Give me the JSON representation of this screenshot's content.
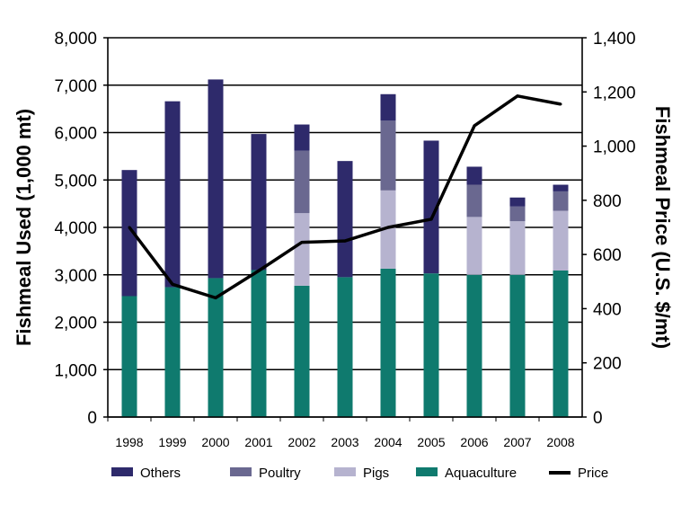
{
  "chart_data": {
    "type": "bar",
    "stacked": true,
    "categories": [
      "1998",
      "1999",
      "2000",
      "2001",
      "2002",
      "2003",
      "2004",
      "2005",
      "2006",
      "2007",
      "2008"
    ],
    "series": [
      {
        "name": "Aquaculture",
        "color": "#0f7a6e",
        "values": [
          2550,
          2740,
          2930,
          3100,
          2770,
          2950,
          3130,
          3030,
          3000,
          3000,
          3090
        ]
      },
      {
        "name": "Pigs",
        "color": "#b6b3cf",
        "values": [
          0,
          0,
          0,
          0,
          1530,
          0,
          1650,
          0,
          1220,
          1130,
          1260
        ]
      },
      {
        "name": "Poultry",
        "color": "#6a6890",
        "values": [
          0,
          0,
          0,
          0,
          1320,
          0,
          1470,
          0,
          680,
          310,
          410
        ]
      },
      {
        "name": "Others",
        "color": "#2e2a6b",
        "values": [
          2660,
          3920,
          4190,
          2870,
          550,
          2450,
          560,
          2800,
          380,
          190,
          140
        ]
      }
    ],
    "line_series": {
      "name": "Price",
      "color": "#000000",
      "axis": "right",
      "values": [
        700,
        490,
        440,
        540,
        645,
        650,
        700,
        730,
        1075,
        1185,
        1155
      ]
    },
    "ylabel": "Fishmeal Used (1,000 mt)",
    "ylabel_right": "Fishmeal Price (U.S. $/mt)",
    "ylim": [
      0,
      8000
    ],
    "ylim_right": [
      0,
      1400
    ],
    "yticks": [
      "0",
      "1,000",
      "2,000",
      "3,000",
      "4,000",
      "5,000",
      "6,000",
      "7,000",
      "8,000"
    ],
    "yticks_right": [
      "0",
      "200",
      "400",
      "600",
      "800",
      "1,000",
      "1,200",
      "1,400"
    ],
    "grid": "horizontal",
    "legend_position": "bottom",
    "legend": [
      "Others",
      "Poultry",
      "Pigs",
      "Aquaculture",
      "Price"
    ]
  }
}
